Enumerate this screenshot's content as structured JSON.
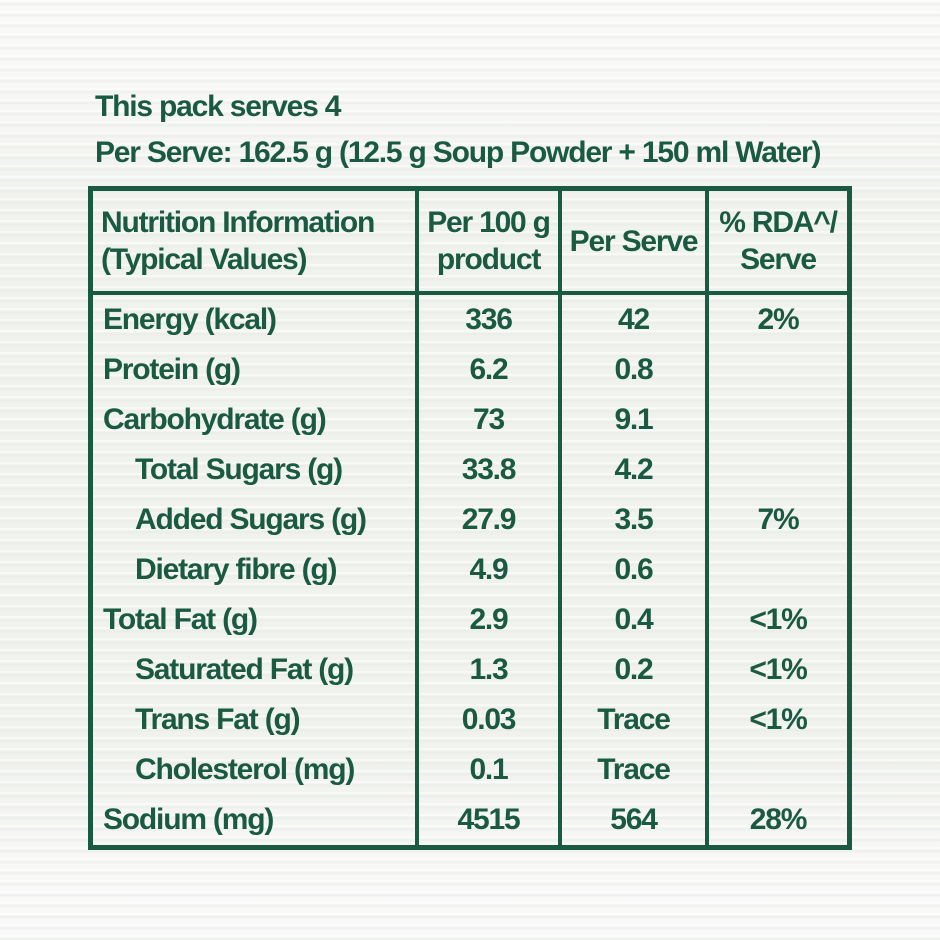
{
  "colors": {
    "text_green": "#1b5a42",
    "border_green": "#1b5a42",
    "paper_bg": "#f2f3f0",
    "cell_bg": "#eef0ea"
  },
  "intro": {
    "serves_line": "This pack serves 4",
    "per_serve_line": "Per Serve: 162.5 g (12.5 g Soup Powder + 150 ml Water)"
  },
  "table": {
    "headers": [
      {
        "line1": "Nutrition Information",
        "line2": "(Typical Values)"
      },
      {
        "line1": "Per 100 g",
        "line2": "product"
      },
      {
        "line1": "Per Serve",
        "line2": ""
      },
      {
        "line1": "% RDA^/",
        "line2": "Serve"
      }
    ],
    "rows": [
      {
        "label": "Energy (kcal)",
        "indent": false,
        "per100g": "336",
        "per_serve": "42",
        "rda": "2%"
      },
      {
        "label": "Protein (g)",
        "indent": false,
        "per100g": "6.2",
        "per_serve": "0.8",
        "rda": ""
      },
      {
        "label": "Carbohydrate (g)",
        "indent": false,
        "per100g": "73",
        "per_serve": "9.1",
        "rda": ""
      },
      {
        "label": "Total Sugars (g)",
        "indent": true,
        "per100g": "33.8",
        "per_serve": "4.2",
        "rda": ""
      },
      {
        "label": "Added Sugars (g)",
        "indent": true,
        "per100g": "27.9",
        "per_serve": "3.5",
        "rda": "7%"
      },
      {
        "label": "Dietary fibre (g)",
        "indent": true,
        "per100g": "4.9",
        "per_serve": "0.6",
        "rda": ""
      },
      {
        "label": "Total Fat (g)",
        "indent": false,
        "per100g": "2.9",
        "per_serve": "0.4",
        "rda": "<1%"
      },
      {
        "label": "Saturated Fat (g)",
        "indent": true,
        "per100g": "1.3",
        "per_serve": "0.2",
        "rda": "<1%"
      },
      {
        "label": "Trans Fat (g)",
        "indent": true,
        "per100g": "0.03",
        "per_serve": "Trace",
        "rda": "<1%"
      },
      {
        "label": "Cholesterol (mg)",
        "indent": true,
        "per100g": "0.1",
        "per_serve": "Trace",
        "rda": ""
      },
      {
        "label": "Sodium (mg)",
        "indent": false,
        "per100g": "4515",
        "per_serve": "564",
        "rda": "28%"
      }
    ]
  }
}
